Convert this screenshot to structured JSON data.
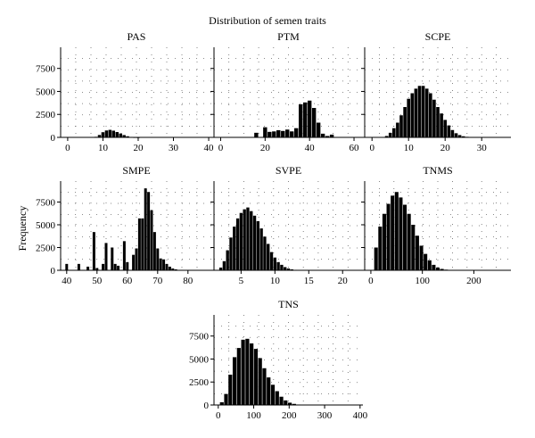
{
  "title": "Distribution of semen traits",
  "ylabel": "Frequency",
  "colors": {
    "bars": "#000000",
    "grid": "#666666",
    "axis": "#000000",
    "background": "#ffffff"
  },
  "chart_data": [
    {
      "type": "bar",
      "title": "PAS",
      "xlabel": "",
      "ylabel": "Frequency",
      "xlim": [
        -2,
        41
      ],
      "ylim": [
        0,
        9800
      ],
      "grid": true,
      "xticks": [
        0,
        10,
        20,
        30,
        40
      ],
      "yticks": [
        0,
        2500,
        5000,
        7500
      ],
      "x": [
        8,
        9,
        10,
        11,
        12,
        13,
        14,
        15,
        16,
        17,
        18,
        19,
        20
      ],
      "values": [
        60,
        260,
        560,
        750,
        820,
        730,
        580,
        420,
        250,
        120,
        50,
        20,
        10
      ]
    },
    {
      "type": "bar",
      "title": "PTM",
      "xlabel": "",
      "ylabel": "Frequency",
      "xlim": [
        -3,
        64
      ],
      "ylim": [
        0,
        9800
      ],
      "grid": true,
      "xticks": [
        0,
        20,
        40,
        60
      ],
      "yticks": [
        0,
        2500,
        5000,
        7500
      ],
      "x": [
        16,
        20,
        22,
        24,
        26,
        28,
        30,
        32,
        34,
        36,
        38,
        40,
        42,
        44,
        46,
        48,
        50
      ],
      "values": [
        500,
        1100,
        600,
        650,
        780,
        700,
        850,
        650,
        1000,
        3600,
        3800,
        4000,
        3200,
        1600,
        400,
        150,
        300
      ]
    },
    {
      "type": "bar",
      "title": "SCPE",
      "xlabel": "",
      "ylabel": "Frequency",
      "xlim": [
        -2,
        38
      ],
      "ylim": [
        0,
        9800
      ],
      "grid": true,
      "xticks": [
        0,
        10,
        20,
        30
      ],
      "yticks": [
        0,
        2500,
        5000,
        7500
      ],
      "x": [
        4,
        5,
        6,
        7,
        8,
        9,
        10,
        11,
        12,
        13,
        14,
        15,
        16,
        17,
        18,
        19,
        20,
        21,
        22,
        23,
        24,
        25,
        26
      ],
      "values": [
        150,
        500,
        1000,
        1600,
        2400,
        3300,
        4200,
        4800,
        5300,
        5600,
        5600,
        5300,
        4800,
        4100,
        3300,
        2600,
        1900,
        1300,
        800,
        450,
        250,
        120,
        60
      ]
    },
    {
      "type": "bar",
      "title": "SMPE",
      "xlabel": "",
      "ylabel": "Frequency",
      "xlim": [
        38,
        88
      ],
      "ylim": [
        0,
        9800
      ],
      "grid": true,
      "xticks": [
        40,
        50,
        60,
        70,
        80
      ],
      "yticks": [
        0,
        2500,
        5000,
        7500
      ],
      "x": [
        40,
        44,
        47,
        49,
        50,
        52,
        53,
        55,
        56,
        57,
        59,
        60,
        62,
        63,
        64,
        65,
        66,
        67,
        68,
        69,
        70,
        71,
        72,
        73,
        74,
        75,
        76,
        78
      ],
      "values": [
        700,
        700,
        400,
        4200,
        250,
        700,
        3000,
        2500,
        700,
        500,
        3200,
        900,
        1700,
        2400,
        5700,
        5700,
        9000,
        8600,
        6600,
        4200,
        2400,
        1300,
        1200,
        700,
        400,
        200,
        100,
        50
      ]
    },
    {
      "type": "bar",
      "title": "SVPE",
      "xlabel": "",
      "ylabel": "Frequency",
      "xlim": [
        1,
        23
      ],
      "ylim": [
        0,
        9800
      ],
      "grid": true,
      "xticks": [
        5,
        10,
        15,
        20
      ],
      "yticks": [
        0,
        2500,
        5000,
        7500
      ],
      "x": [
        2,
        2.5,
        3,
        3.5,
        4,
        4.5,
        5,
        5.5,
        6,
        6.5,
        7,
        7.5,
        8,
        8.5,
        9,
        9.5,
        10,
        10.5,
        11,
        11.5,
        12,
        12.5,
        13
      ],
      "values": [
        300,
        1000,
        2200,
        3600,
        4800,
        5700,
        6300,
        6700,
        6900,
        6500,
        6000,
        5400,
        4600,
        3700,
        2900,
        2000,
        1400,
        900,
        600,
        350,
        200,
        100,
        50
      ]
    },
    {
      "type": "bar",
      "title": "TNMS",
      "xlabel": "",
      "ylabel": "Frequency",
      "xlim": [
        -12,
        272
      ],
      "ylim": [
        0,
        9800
      ],
      "grid": true,
      "xticks": [
        0,
        100,
        200
      ],
      "yticks": [
        0,
        2500,
        5000,
        7500
      ],
      "x": [
        10,
        18,
        26,
        34,
        42,
        50,
        58,
        66,
        74,
        82,
        90,
        98,
        106,
        114,
        122,
        130,
        138,
        146,
        154
      ],
      "values": [
        2500,
        4800,
        6200,
        7300,
        8200,
        8600,
        8000,
        7200,
        6200,
        5000,
        3800,
        2700,
        1800,
        1100,
        600,
        300,
        150,
        70,
        30
      ]
    },
    {
      "type": "bar",
      "title": "TNS",
      "xlabel": "",
      "ylabel": "Frequency",
      "xlim": [
        -12,
        408
      ],
      "ylim": [
        0,
        9800
      ],
      "grid": true,
      "xticks": [
        0,
        100,
        200,
        300,
        400
      ],
      "yticks": [
        0,
        2500,
        5000,
        7500
      ],
      "x": [
        10,
        22,
        34,
        46,
        58,
        70,
        82,
        94,
        106,
        118,
        130,
        142,
        154,
        166,
        178,
        190,
        202,
        214,
        226
      ],
      "values": [
        300,
        1200,
        3300,
        5200,
        6200,
        7100,
        7200,
        6700,
        6100,
        5100,
        4000,
        3000,
        2200,
        1500,
        900,
        500,
        250,
        120,
        50
      ]
    }
  ]
}
